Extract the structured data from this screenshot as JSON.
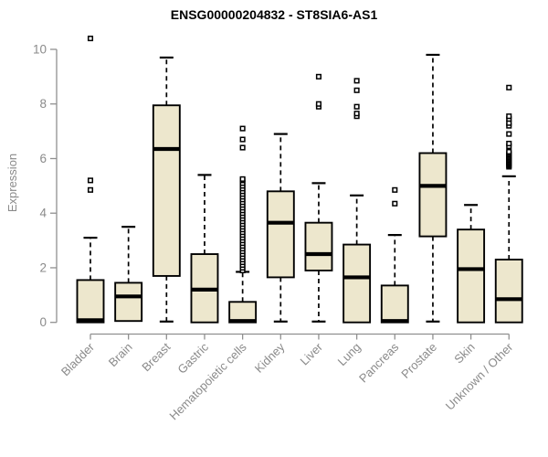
{
  "colors": {
    "background": "#ffffff",
    "box_fill": "#ede7cd",
    "box_stroke": "#000000",
    "median_color": "#000000",
    "whisker_color": "#000000",
    "outlier_stroke": "#000000",
    "outlier_fill": "#ffffff",
    "axis_line": "#909090",
    "axis_text": "#8a8a8a",
    "title_color": "#000000"
  },
  "chart_data": {
    "type": "boxplot",
    "title": "ENSG00000204832 - ST8SIA6-AS1",
    "xlabel": "",
    "ylabel": "Expression",
    "ylim": [
      0,
      10.4
    ],
    "yticks": [
      0,
      2,
      4,
      6,
      8,
      10
    ],
    "grid": false,
    "legend": "none",
    "categories": [
      "Bladder",
      "Brain",
      "Breast",
      "Gastric",
      "Hematopoietic cells",
      "Kidney",
      "Liver",
      "Lung",
      "Pancreas",
      "Prostate",
      "Skin",
      "Unknown / Other"
    ],
    "series": [
      {
        "name": "Bladder",
        "low": 0,
        "q1": 0,
        "median": 0.08,
        "q3": 1.55,
        "high": 3.1,
        "outliers": [
          4.85,
          5.2,
          10.4
        ]
      },
      {
        "name": "Brain",
        "low": 0.05,
        "q1": 0.05,
        "median": 0.95,
        "q3": 1.45,
        "high": 3.5,
        "outliers": []
      },
      {
        "name": "Breast",
        "low": 0.03,
        "q1": 1.7,
        "median": 6.35,
        "q3": 7.95,
        "high": 9.7,
        "outliers": []
      },
      {
        "name": "Gastric",
        "low": 0,
        "q1": 0,
        "median": 1.2,
        "q3": 2.5,
        "high": 5.4,
        "outliers": []
      },
      {
        "name": "Hematopoietic cells",
        "low": 0,
        "q1": 0,
        "median": 0.05,
        "q3": 0.75,
        "high": 1.85,
        "outliers": [
          1.9,
          2.0,
          2.1,
          2.2,
          2.3,
          2.4,
          2.5,
          2.6,
          2.7,
          2.8,
          2.9,
          3.0,
          3.1,
          3.2,
          3.3,
          3.4,
          3.5,
          3.6,
          3.7,
          3.8,
          3.9,
          4.0,
          4.1,
          4.2,
          4.3,
          4.4,
          4.5,
          4.6,
          4.7,
          4.8,
          4.9,
          5.0,
          5.1,
          5.2,
          5.25,
          6.4,
          6.7,
          7.1
        ]
      },
      {
        "name": "Kidney",
        "low": 0.03,
        "q1": 1.65,
        "median": 3.65,
        "q3": 4.8,
        "high": 6.9,
        "outliers": []
      },
      {
        "name": "Liver",
        "low": 0.03,
        "q1": 1.9,
        "median": 2.5,
        "q3": 3.65,
        "high": 5.1,
        "outliers": [
          7.9,
          8.0,
          9.0
        ]
      },
      {
        "name": "Lung",
        "low": 0,
        "q1": 0,
        "median": 1.65,
        "q3": 2.85,
        "high": 4.65,
        "outliers": [
          7.55,
          7.65,
          7.9,
          8.5,
          8.85
        ]
      },
      {
        "name": "Pancreas",
        "low": 0,
        "q1": 0,
        "median": 0.05,
        "q3": 1.35,
        "high": 3.2,
        "outliers": [
          4.35,
          4.85
        ]
      },
      {
        "name": "Prostate",
        "low": 0.03,
        "q1": 3.15,
        "median": 5.0,
        "q3": 6.2,
        "high": 9.8,
        "outliers": []
      },
      {
        "name": "Skin",
        "low": 0,
        "q1": 0,
        "median": 1.95,
        "q3": 3.4,
        "high": 4.3,
        "outliers": []
      },
      {
        "name": "Unknown / Other",
        "low": 0,
        "q1": 0,
        "median": 0.85,
        "q3": 2.3,
        "high": 5.35,
        "outliers": [
          5.7,
          5.75,
          5.8,
          5.85,
          5.9,
          5.95,
          6.0,
          6.05,
          6.1,
          6.15,
          6.2,
          6.25,
          6.45,
          6.55,
          6.9,
          7.2,
          7.3,
          7.45,
          7.55,
          8.6
        ]
      }
    ]
  }
}
